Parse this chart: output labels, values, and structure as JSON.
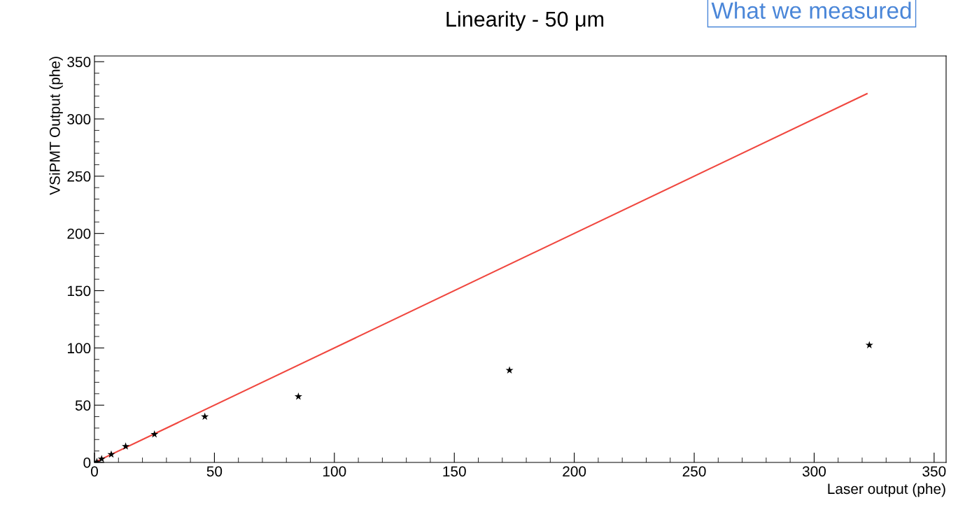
{
  "chart_data": {
    "type": "scatter",
    "title": "Linearity - 50 μm",
    "xlabel": "Laser output (phe)",
    "ylabel": "VSiPMT Output (phe)",
    "annotations": [
      "What we measured"
    ],
    "series": [
      {
        "color": "#000000",
        "marker": "star",
        "x": [
          1,
          3,
          7,
          13,
          25,
          46,
          85,
          173,
          323
        ],
        "values": [
          0.5,
          3,
          7,
          14,
          24.5,
          40,
          57.5,
          80.5,
          102.5
        ]
      },
      {
        "type": "line",
        "color": "#f0473f",
        "marker": "none",
        "x": [
          1,
          322
        ],
        "values": [
          1,
          322
        ]
      }
    ],
    "xlim": [
      0,
      355
    ],
    "ylim": [
      0,
      355
    ],
    "xticks": [
      0,
      50,
      100,
      150,
      200,
      250,
      300,
      350
    ],
    "yticks": [
      0,
      50,
      100,
      150,
      200,
      250,
      300,
      350
    ],
    "grid": false,
    "legend": false
  }
}
